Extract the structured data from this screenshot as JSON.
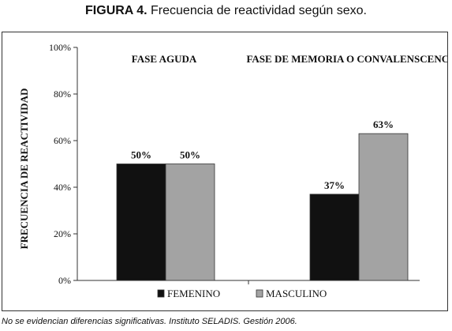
{
  "figure": {
    "label": "FIGURA 4.",
    "caption": "Frecuencia de reactividad según sexo."
  },
  "footnote": "No se evidencian diferencias significativas. Instituto SELADIS. Gestión 2006.",
  "chart_data": {
    "type": "bar",
    "categories": [
      "FASE AGUDA",
      "FASE DE MEMORIA O CONVALENSCENCIA"
    ],
    "series": [
      {
        "name": "FEMENINO",
        "values": [
          50,
          37
        ],
        "labels": [
          "50%",
          "37%"
        ],
        "color": "#111111"
      },
      {
        "name": "MASCULINO",
        "values": [
          50,
          63
        ],
        "labels": [
          "50%",
          "63%"
        ],
        "color": "#a3a3a3"
      }
    ],
    "ylabel": "FRECUENCIA DE REACTIVIDAD",
    "xlabel": "",
    "ylim": [
      0,
      100
    ],
    "yticks": [
      0,
      20,
      40,
      60,
      80,
      100
    ],
    "ytick_labels": [
      "0%",
      "20%",
      "40%",
      "60%",
      "80%",
      "100%"
    ],
    "grid": false,
    "legend_position": "bottom"
  }
}
